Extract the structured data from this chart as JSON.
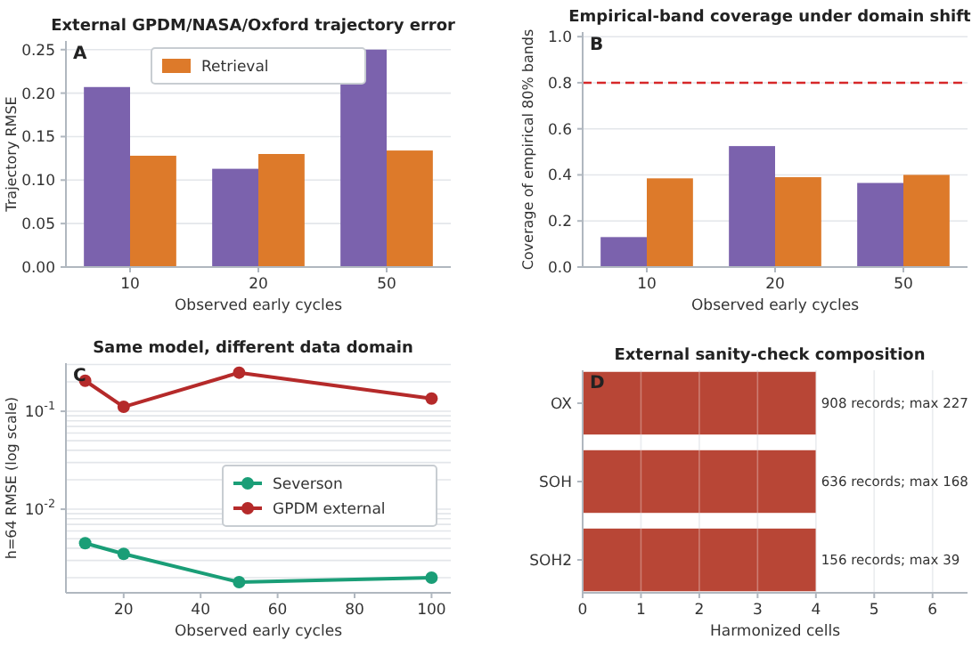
{
  "chart_data": [
    {
      "type": "bar",
      "title": "External GPDM/NASA/Oxford trajectory error",
      "xlabel": "Observed early cycles",
      "ylabel": "Trajectory RMSE",
      "annotations": [
        "A"
      ],
      "categories": [
        "10",
        "20",
        "50"
      ],
      "series": [
        {
          "color": "#7b62ad",
          "values": [
            0.207,
            0.113,
            0.25
          ]
        },
        {
          "name": "Retrieval",
          "color": "#dd7a2a",
          "values": [
            0.128,
            0.13,
            0.134
          ]
        }
      ],
      "ylim": [
        0,
        0.26
      ],
      "yticks": [
        {
          "value": 0,
          "label": "0.00"
        },
        {
          "value": 0.05,
          "label": "0.05"
        },
        {
          "value": 0.1,
          "label": "0.10"
        },
        {
          "value": 0.15,
          "label": "0.15"
        },
        {
          "value": 0.2,
          "label": "0.20"
        },
        {
          "value": 0.25,
          "label": "0.25"
        }
      ],
      "grid": "y",
      "legend": "top"
    },
    {
      "type": "bar",
      "title": "Empirical-band coverage under domain shift",
      "xlabel": "Observed early cycles",
      "ylabel": "Coverage of empirical 80% bands",
      "annotations": [
        "B"
      ],
      "categories": [
        "10",
        "20",
        "50"
      ],
      "series": [
        {
          "color": "#7b62ad",
          "values": [
            0.13,
            0.525,
            0.365
          ]
        },
        {
          "color": "#dd7a2a",
          "values": [
            0.385,
            0.39,
            0.4
          ]
        }
      ],
      "ylim": [
        0,
        1.02
      ],
      "yticks": [
        {
          "value": 0,
          "label": "0.0"
        },
        {
          "value": 0.2,
          "label": "0.2"
        },
        {
          "value": 0.4,
          "label": "0.4"
        },
        {
          "value": 0.6,
          "label": "0.6"
        },
        {
          "value": 0.8,
          "label": "0.8"
        },
        {
          "value": 1,
          "label": "1.0"
        }
      ],
      "grid": "y",
      "ref_lines": [
        {
          "axis": "y",
          "value": 0.8,
          "color": "#d62728",
          "line_style": "dashed"
        }
      ]
    },
    {
      "type": "line",
      "title": "Same model, different data domain",
      "xlabel": "Observed early cycles",
      "ylabel": "h=64 RMSE (log scale)",
      "annotations": [
        "C"
      ],
      "x": [
        10,
        20,
        50,
        100
      ],
      "series": [
        {
          "name": "Severson",
          "color": "#1a9e77",
          "values": [
            0.0045,
            0.0035,
            0.0018,
            0.002
          ]
        },
        {
          "name": "GPDM external",
          "color": "#b52a2a",
          "values": [
            0.205,
            0.111,
            0.248,
            0.135
          ]
        }
      ],
      "log": "y",
      "xlim": [
        5,
        105
      ],
      "xticks": [
        20,
        40,
        60,
        80,
        100
      ],
      "ylim": [
        0.0014,
        0.31
      ],
      "yticks": [
        {
          "value": 0.01,
          "label": "10$^{-2}$"
        },
        {
          "value": 0.1,
          "label": "10$^{-1}$"
        }
      ],
      "grid": "y",
      "marker": "circle",
      "line_style": "solid",
      "legend": "center right"
    },
    {
      "type": "bar",
      "orientation": "horizontal",
      "title": "External sanity-check composition",
      "xlabel": "Harmonized cells",
      "annotations": [
        "D",
        "908 records; max 227",
        "636 records; max 168",
        "156 records; max 39"
      ],
      "categories": [
        "OX",
        "SOH",
        "SOH2"
      ],
      "values": [
        4,
        4,
        4
      ],
      "color": "#b84636",
      "xlim": [
        0,
        6.6
      ],
      "xticks": [
        0,
        1,
        2,
        3,
        4,
        5,
        6
      ],
      "grid": "x"
    }
  ]
}
